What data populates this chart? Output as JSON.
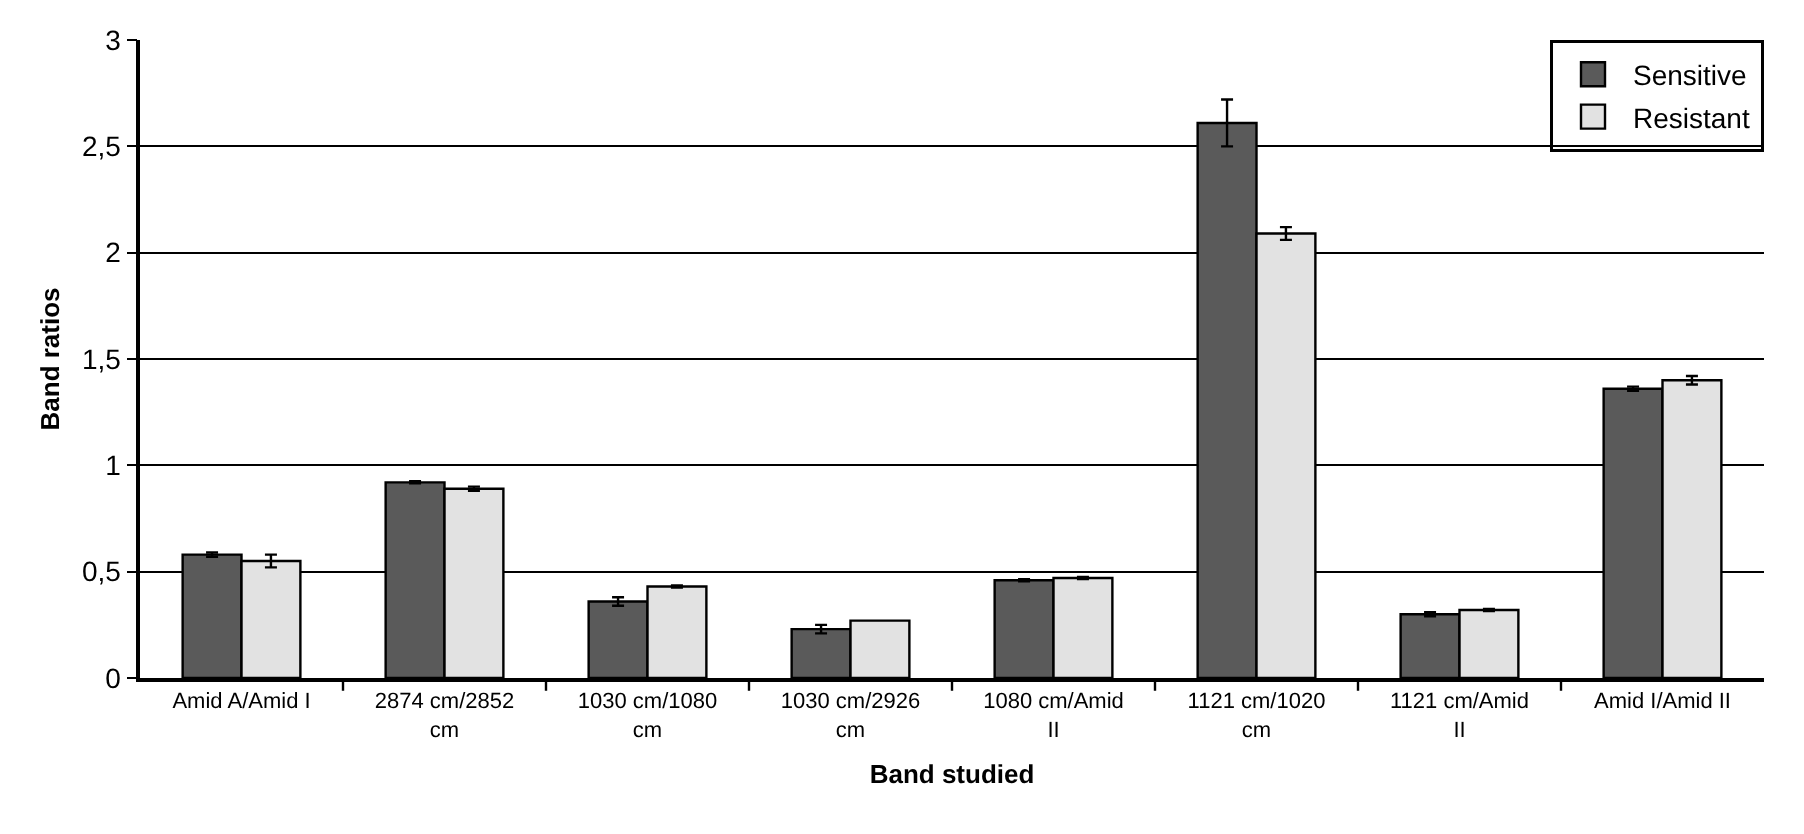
{
  "chart_data": {
    "type": "bar",
    "xlabel": "Band studied",
    "ylabel": "Band ratios",
    "categories": [
      "Amid A/Amid I",
      "2874 cm/2852 cm",
      "1030 cm/1080 cm",
      "1030 cm/2926 cm",
      "1080 cm/Amid II",
      "1121 cm/1020 cm",
      "1121 cm/Amid II",
      "Amid I/Amid II"
    ],
    "series": [
      {
        "name": "Sensitive",
        "color": "#5a5a5a",
        "values": [
          0.58,
          0.92,
          0.36,
          0.23,
          0.46,
          2.61,
          0.3,
          1.36
        ],
        "errors": [
          0.01,
          0.005,
          0.02,
          0.02,
          0.005,
          0.11,
          0.01,
          0.01
        ]
      },
      {
        "name": "Resistant",
        "color": "#e2e2e2",
        "values": [
          0.55,
          0.89,
          0.43,
          0.27,
          0.47,
          2.09,
          0.32,
          1.4
        ],
        "errors": [
          0.03,
          0.01,
          0.005,
          null,
          0.005,
          0.03,
          0.005,
          0.02
        ]
      }
    ],
    "ylim": [
      0,
      3
    ],
    "yticks": [
      0,
      {
        "value": 0.5,
        "label": "0,5"
      },
      1,
      {
        "value": 1.5,
        "label": "1,5"
      },
      2,
      {
        "value": 2.5,
        "label": "2,5"
      },
      3
    ],
    "grid": "y",
    "legend": "top right"
  }
}
